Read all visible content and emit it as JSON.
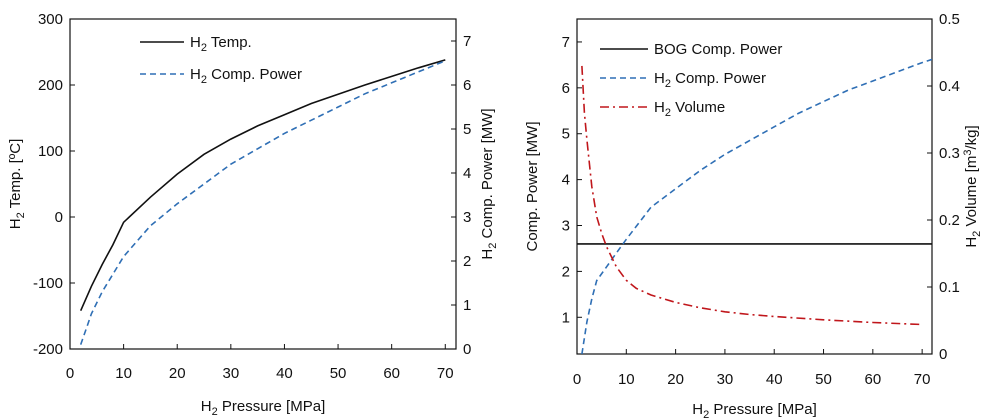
{
  "chart_data": [
    {
      "type": "line",
      "x_label": {
        "main": "H",
        "sub": "2",
        "rest": " Pressure [MPa]"
      },
      "y_left_label": {
        "main": "H",
        "sub": "2",
        "rest": " Temp. [ºC]"
      },
      "y_right_label": {
        "main": "H",
        "sub": "2",
        "rest": " Comp. Power [MW]"
      },
      "xlim": [
        0,
        72
      ],
      "ylim_left": [
        -200,
        300
      ],
      "ylim_right": [
        0,
        7.5
      ],
      "x_ticks": [
        0,
        10,
        20,
        30,
        40,
        50,
        60,
        70
      ],
      "y_left_ticks": [
        -200,
        -100,
        0,
        100,
        200,
        300
      ],
      "y_right_ticks": [
        0,
        1,
        2,
        3,
        4,
        5,
        6,
        7
      ],
      "legend_position": "top-left",
      "series": [
        {
          "name": {
            "main": "H",
            "sub": "2",
            "rest": " Temp."
          },
          "axis": "left",
          "color": "#111111",
          "dash": "solid",
          "x": [
            2,
            4,
            6,
            8,
            10,
            15,
            20,
            25,
            30,
            35,
            40,
            45,
            50,
            55,
            60,
            65,
            70
          ],
          "y": [
            -142,
            -105,
            -72,
            -42,
            -8,
            30,
            65,
            95,
            118,
            138,
            155,
            172,
            186,
            200,
            213,
            226,
            238
          ]
        },
        {
          "name": {
            "main": "H",
            "sub": "2",
            "rest": " Comp. Power"
          },
          "axis": "right",
          "color": "#2f6fb5",
          "dash": "dashed",
          "x": [
            2,
            3,
            4,
            6,
            8,
            10,
            15,
            20,
            25,
            30,
            35,
            40,
            45,
            50,
            55,
            60,
            65,
            70
          ],
          "y": [
            0.1,
            0.45,
            0.8,
            1.3,
            1.7,
            2.1,
            2.8,
            3.3,
            3.75,
            4.2,
            4.55,
            4.9,
            5.2,
            5.5,
            5.8,
            6.05,
            6.3,
            6.55
          ]
        }
      ]
    },
    {
      "type": "line",
      "x_label": {
        "main": "H",
        "sub": "2",
        "rest": " Pressure [MPa]"
      },
      "y_left_label": {
        "main": "Comp. Power [MW]",
        "sub": "",
        "rest": ""
      },
      "y_right_label": {
        "main": "H",
        "sub": "2",
        "rest": " Volume [m",
        "sup": "3",
        "rest2": "/kg]"
      },
      "xlim": [
        0,
        72
      ],
      "ylim_left": [
        0.2,
        7.5
      ],
      "ylim_right": [
        0,
        0.5
      ],
      "x_ticks": [
        0,
        10,
        20,
        30,
        40,
        50,
        60,
        70
      ],
      "y_left_ticks": [
        1,
        2,
        3,
        4,
        5,
        6,
        7
      ],
      "y_right_ticks": [
        0,
        0.1,
        0.2,
        0.3,
        0.4,
        0.5
      ],
      "legend_position": "top-left",
      "series": [
        {
          "name": {
            "main": "BOG Comp. Power",
            "sub": "",
            "rest": ""
          },
          "axis": "left",
          "color": "#111111",
          "dash": "solid",
          "x": [
            0,
            72
          ],
          "y": [
            2.6,
            2.6
          ]
        },
        {
          "name": {
            "main": "H",
            "sub": "2",
            "rest": " Comp. Power"
          },
          "axis": "left",
          "color": "#2f6fb5",
          "dash": "dashed",
          "x": [
            1,
            2,
            3,
            4,
            6,
            8,
            10,
            15,
            20,
            25,
            30,
            35,
            40,
            45,
            50,
            55,
            60,
            65,
            70,
            72
          ],
          "y": [
            0.2,
            0.9,
            1.4,
            1.8,
            2.1,
            2.4,
            2.7,
            3.4,
            3.8,
            4.2,
            4.55,
            4.85,
            5.15,
            5.45,
            5.7,
            5.95,
            6.15,
            6.35,
            6.55,
            6.62
          ]
        },
        {
          "name": {
            "main": "H",
            "sub": "2",
            "rest": " Volume"
          },
          "axis": "right",
          "color": "#c0161b",
          "dash": "dashdot",
          "x": [
            1,
            1.5,
            2,
            3,
            4,
            5,
            6,
            8,
            10,
            12,
            15,
            20,
            25,
            30,
            35,
            40,
            50,
            60,
            70
          ],
          "y": [
            0.43,
            0.36,
            0.32,
            0.25,
            0.205,
            0.18,
            0.16,
            0.13,
            0.11,
            0.098,
            0.088,
            0.077,
            0.069,
            0.063,
            0.059,
            0.056,
            0.051,
            0.047,
            0.044
          ]
        }
      ]
    }
  ]
}
